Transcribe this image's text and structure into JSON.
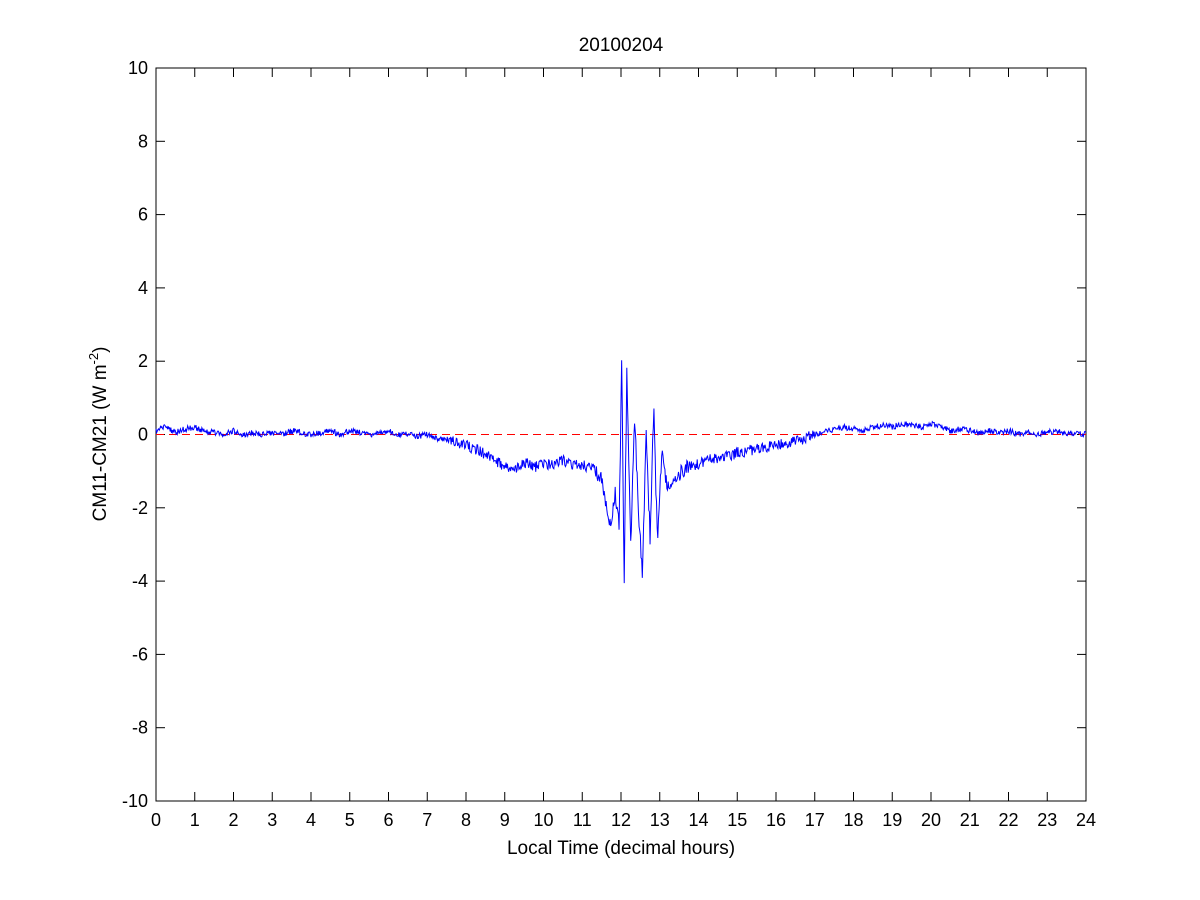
{
  "chart_data": {
    "type": "line",
    "title": "20100204",
    "xlabel": "Local Time (decimal hours)",
    "ylabel": "CM11-CM21 (W m",
    "ylabel_superscript": "-2",
    "ylabel_suffix": ")",
    "xlim": [
      0,
      24
    ],
    "ylim": [
      -10,
      10
    ],
    "xticks": [
      0,
      1,
      2,
      3,
      4,
      5,
      6,
      7,
      8,
      9,
      10,
      11,
      12,
      13,
      14,
      15,
      16,
      17,
      18,
      19,
      20,
      21,
      22,
      23,
      24
    ],
    "yticks": [
      -10,
      -8,
      -6,
      -4,
      -2,
      0,
      2,
      4,
      6,
      8,
      10
    ],
    "grid": false,
    "colors": {
      "series": "#0000ff",
      "reference": "#ff0000",
      "axes": "#000000"
    },
    "reference_line": {
      "y": 0,
      "style": "dashed"
    },
    "series": [
      {
        "x": [
          0,
          0.25,
          0.5,
          0.75,
          1,
          1.25,
          1.5,
          1.75,
          2,
          2.25,
          2.5,
          2.75,
          3,
          3.25,
          3.5,
          3.75,
          4,
          4.25,
          4.5,
          4.75,
          5,
          5.25,
          5.5,
          5.75,
          6,
          6.25,
          6.5,
          6.75,
          7,
          7.25,
          7.5,
          7.75,
          8,
          8.25,
          8.5,
          8.75,
          9,
          9.25,
          9.5,
          9.75,
          10,
          10.25,
          10.5,
          10.75,
          11,
          11.25,
          11.5,
          11.6,
          11.75,
          11.85,
          11.95,
          12.02,
          12.08,
          12.15,
          12.25,
          12.35,
          12.45,
          12.55,
          12.65,
          12.75,
          12.85,
          12.9,
          12.95,
          13.05,
          13.15,
          13.3,
          13.5,
          13.75,
          14,
          14.25,
          14.5,
          14.75,
          15,
          15.25,
          15.5,
          15.75,
          16,
          16.25,
          16.5,
          16.75,
          17,
          17.25,
          17.5,
          17.75,
          18,
          18.25,
          18.5,
          18.75,
          19,
          19.25,
          19.5,
          19.75,
          20,
          20.25,
          20.5,
          20.75,
          21,
          21.25,
          21.5,
          21.75,
          22,
          22.25,
          22.5,
          22.75,
          23,
          23.25,
          23.5,
          23.75,
          24
        ],
        "y": [
          0.1,
          0.2,
          0.05,
          0.15,
          0.2,
          0.1,
          0.05,
          0.0,
          0.1,
          0.0,
          0.05,
          0.0,
          0.05,
          0.0,
          0.1,
          0.05,
          0.0,
          0.05,
          0.1,
          0.0,
          0.1,
          0.05,
          0.0,
          0.05,
          0.1,
          0.0,
          0.0,
          -0.05,
          0.0,
          -0.1,
          -0.15,
          -0.2,
          -0.3,
          -0.4,
          -0.55,
          -0.7,
          -0.9,
          -1.0,
          -0.75,
          -0.9,
          -0.8,
          -0.85,
          -0.7,
          -0.8,
          -0.85,
          -0.9,
          -1.2,
          -1.8,
          -2.5,
          -1.5,
          -2.6,
          2.1,
          -4.2,
          1.7,
          -3.0,
          0.4,
          -2.0,
          -3.8,
          0.1,
          -2.8,
          0.9,
          -1.5,
          -2.8,
          -0.5,
          -1.3,
          -1.5,
          -1.1,
          -0.9,
          -0.8,
          -0.7,
          -0.65,
          -0.6,
          -0.5,
          -0.45,
          -0.4,
          -0.35,
          -0.3,
          -0.25,
          -0.2,
          -0.1,
          0.0,
          0.1,
          0.15,
          0.2,
          0.15,
          0.1,
          0.2,
          0.25,
          0.2,
          0.3,
          0.25,
          0.2,
          0.3,
          0.2,
          0.1,
          0.15,
          0.1,
          0.05,
          0.1,
          0.05,
          0.1,
          0.0,
          0.05,
          0.0,
          0.05,
          0.1,
          0.0,
          0.05,
          0.0
        ]
      }
    ]
  }
}
